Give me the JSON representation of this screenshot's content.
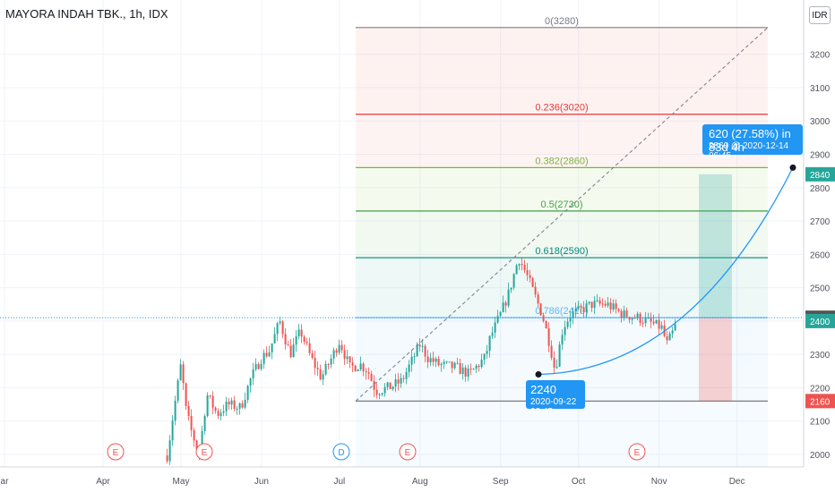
{
  "header": {
    "symbol": "MAYORA INDAH TBK., 1h, IDX",
    "currency_button": "IDR"
  },
  "chart_data": {
    "type": "candlestick",
    "title": "MAYORA INDAH TBK., 1h, IDX",
    "y_axis": {
      "ticks": [
        2000,
        2100,
        2200,
        2300,
        2400,
        2500,
        2600,
        2700,
        2800,
        2900,
        3000,
        3100,
        3200
      ],
      "ylim": [
        1960,
        3340
      ]
    },
    "x_axis": {
      "ticks": [
        "ar",
        "Apr",
        "May",
        "Jun",
        "Jul",
        "Aug",
        "Sep",
        "Oct",
        "Nov",
        "Dec"
      ]
    },
    "price_path": [
      [
        "Apr 25",
        1960
      ],
      [
        "Apr 28",
        2120
      ],
      [
        "May 1",
        2270
      ],
      [
        "May 3",
        2130
      ],
      [
        "May 5",
        2070
      ],
      [
        "May 8",
        2000
      ],
      [
        "May 11",
        2180
      ],
      [
        "May 15",
        2120
      ],
      [
        "May 19",
        2150
      ],
      [
        "May 24",
        2140
      ],
      [
        "May 28",
        2230
      ],
      [
        "Jun 1",
        2290
      ],
      [
        "Jun 4",
        2310
      ],
      [
        "Jun 8",
        2400
      ],
      [
        "Jun 12",
        2300
      ],
      [
        "Jun 16",
        2370
      ],
      [
        "Jun 20",
        2290
      ],
      [
        "Jun 24",
        2230
      ],
      [
        "Jun 28",
        2290
      ],
      [
        "Jul 1",
        2340
      ],
      [
        "Jul 5",
        2260
      ],
      [
        "Jul 9",
        2270
      ],
      [
        "Jul 12",
        2250
      ],
      [
        "Jul 15",
        2190
      ],
      [
        "Jul 20",
        2200
      ],
      [
        "Jul 25",
        2220
      ],
      [
        "Aug 1",
        2330
      ],
      [
        "Aug 4",
        2290
      ],
      [
        "Aug 8",
        2270
      ],
      [
        "Aug 15",
        2260
      ],
      [
        "Aug 20",
        2240
      ],
      [
        "Aug 26",
        2290
      ],
      [
        "Aug 28",
        2350
      ],
      [
        "Sep 1",
        2420
      ],
      [
        "Sep 4",
        2480
      ],
      [
        "Sep 8",
        2590
      ],
      [
        "Sep 11",
        2540
      ],
      [
        "Sep 14",
        2480
      ],
      [
        "Sep 17",
        2420
      ],
      [
        "Sep 20",
        2330
      ],
      [
        "Sep 22",
        2250
      ],
      [
        "Sep 25",
        2380
      ],
      [
        "Sep 28",
        2420
      ],
      [
        "Oct 1",
        2430
      ],
      [
        "Oct 6",
        2450
      ],
      [
        "Oct 12",
        2450
      ],
      [
        "Oct 18",
        2420
      ],
      [
        "Oct 24",
        2410
      ],
      [
        "Oct 30",
        2390
      ],
      [
        "Nov 2",
        2380
      ],
      [
        "Nov 4",
        2330
      ],
      [
        "Nov 6",
        2360
      ],
      [
        "Nov 8",
        2400
      ]
    ],
    "fibonacci": {
      "levels": [
        {
          "label": "0(3280)",
          "value": 3280,
          "color": "#787b86"
        },
        {
          "label": "0.236(3020)",
          "value": 3020,
          "color": "#e53935"
        },
        {
          "label": "0.382(2860)",
          "value": 2860,
          "color": "#7cb342"
        },
        {
          "label": "0.5(2730)",
          "value": 2730,
          "color": "#43a047"
        },
        {
          "label": "0.618(2590)",
          "value": 2590,
          "color": "#00897b"
        },
        {
          "label": "0.786(2410)",
          "value": 2410,
          "color": "#64b5f6"
        },
        {
          "label": "",
          "value": 2160,
          "color": "#787b86"
        }
      ]
    },
    "last_price_line": 2410,
    "price_labels": [
      {
        "value": 2840,
        "text": "2840",
        "color": "#26a69a"
      },
      {
        "value": 2410,
        "text": "2410",
        "color": "#555555"
      },
      {
        "value": 2400,
        "text": "2400",
        "color": "#26a69a"
      },
      {
        "value": 2160,
        "text": "2160",
        "color": "#ef5350"
      }
    ],
    "position": {
      "target": 2840,
      "entry": 2410,
      "stop": 2160
    },
    "annotations": [
      {
        "main": "620 (27.58%) in 83d 4h",
        "sub": "2860 @ 2020-12-14  06:45"
      },
      {
        "main": "2240",
        "sub": "2020-09-22  02:45"
      }
    ],
    "events": [
      "E",
      "E",
      "D",
      "E",
      "E"
    ],
    "colors": {
      "up": "#26a69a",
      "down": "#ef5350",
      "accent": "#2196f3"
    }
  }
}
